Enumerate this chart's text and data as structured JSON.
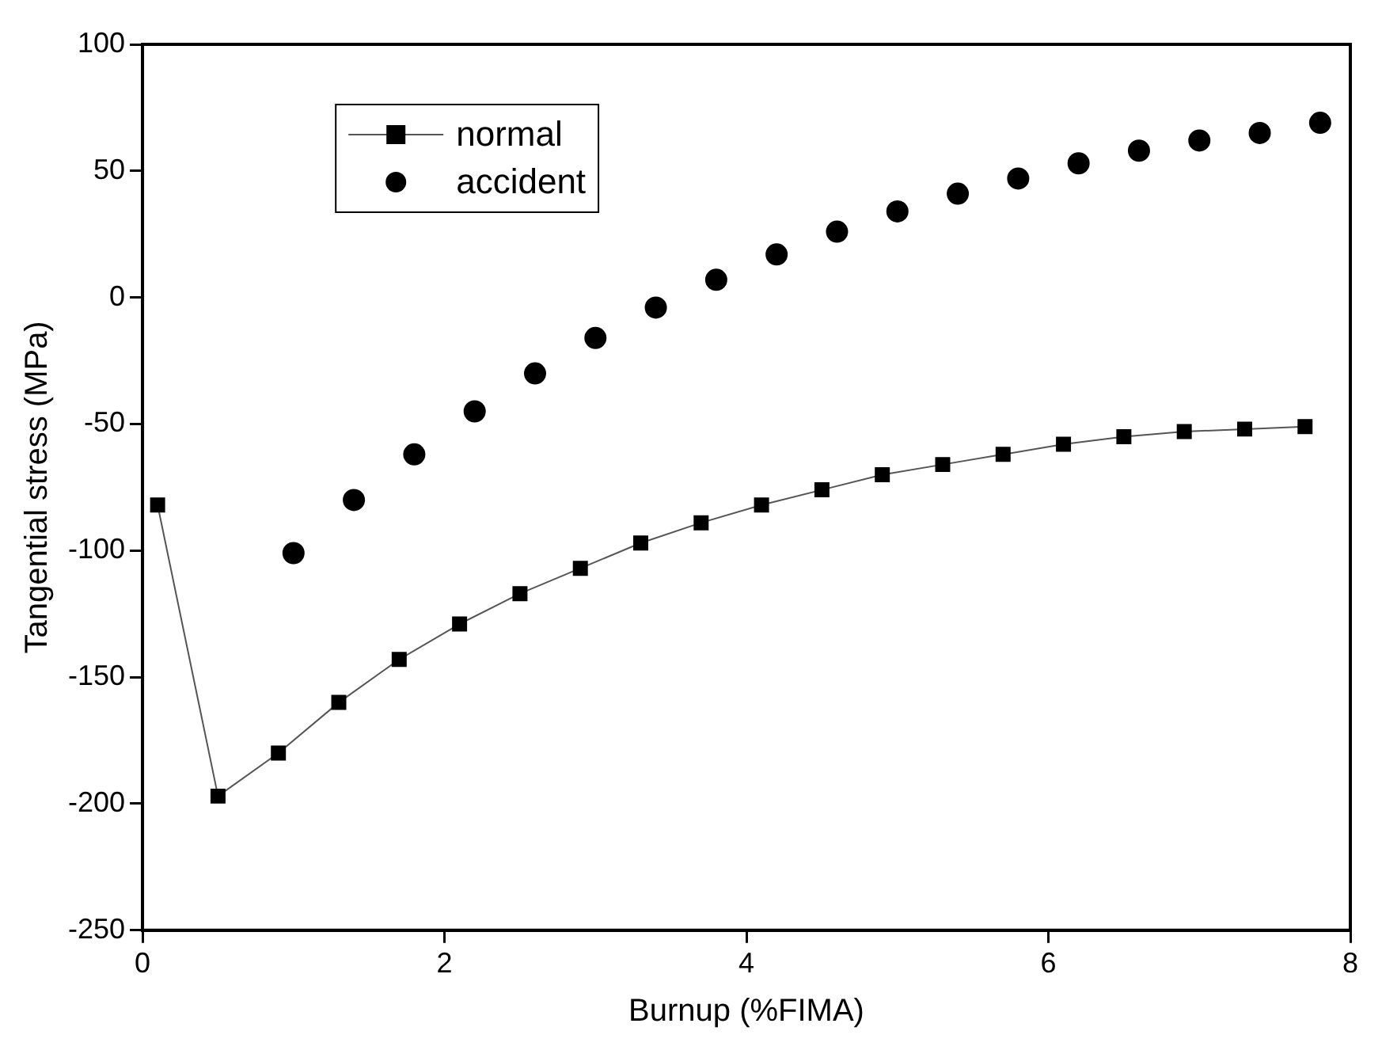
{
  "chart_data": {
    "type": "line",
    "xlabel": "Burnup (%FIMA)",
    "ylabel": "Tangential stress (MPa)",
    "xlim": [
      0,
      8
    ],
    "xticks": [
      0,
      2,
      4,
      6,
      8
    ],
    "ylim": [
      -250,
      100
    ],
    "yticks": [
      -250,
      -200,
      -150,
      -100,
      -50,
      0,
      50,
      100
    ],
    "grid": false,
    "legend": "top left",
    "series": [
      {
        "name": "normal",
        "marker": "square",
        "line_style": "solid",
        "color": "#000000",
        "x": [
          0.1,
          0.5,
          0.9,
          1.3,
          1.7,
          2.1,
          2.5,
          2.9,
          3.3,
          3.7,
          4.1,
          4.5,
          4.9,
          5.3,
          5.7,
          6.1,
          6.5,
          6.9,
          7.3,
          7.7
        ],
        "values": [
          -82,
          -197,
          -180,
          -160,
          -143,
          -129,
          -117,
          -107,
          -97,
          -89,
          -82,
          -76,
          -70,
          -66,
          -62,
          -58,
          -55,
          -53,
          -52,
          -51
        ]
      },
      {
        "name": "accident",
        "type": "scatter",
        "marker": "circle",
        "color": "#000000",
        "x": [
          1.0,
          1.4,
          1.8,
          2.2,
          2.6,
          3.0,
          3.4,
          3.8,
          4.2,
          4.6,
          5.0,
          5.4,
          5.8,
          6.2,
          6.6,
          7.0,
          7.4,
          7.8
        ],
        "values": [
          -101,
          -80,
          -62,
          -45,
          -30,
          -16,
          -4,
          7,
          17,
          26,
          34,
          41,
          47,
          53,
          58,
          62,
          65,
          69
        ]
      }
    ]
  }
}
